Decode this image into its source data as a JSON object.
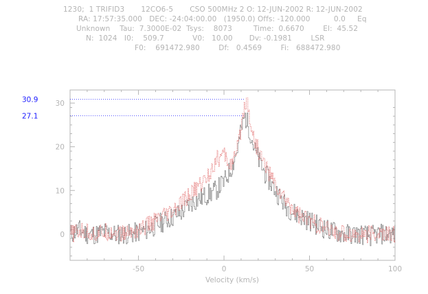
{
  "header": {
    "line1": "1230;  1 TRIFID3       12CO6-5       CSO 500MHz 2 O: 12-JUN-2002 R: 12-JUN-2002",
    "line2": "RA: 17:57:35.000   DEC: -24:04:00.00   (1950.0) Offs: -120.000          0.0     Eq",
    "line3": "Unknown    Tau:  7.3000E-02  Tsys:    8073         Time:  0.6670        El:  45.52",
    "line4": "N:  1024   I0:    509.7            V0:   10.00       Dv: -0.1981        LSR",
    "line5": "F0:    691472.980        Df:   0.4569        Fi:   688472.980"
  },
  "colors": {
    "axis": "#b4b4b4",
    "series_gray": "#808080",
    "series_red": "#e06060",
    "marker": "#1a1aff"
  },
  "chart_data": {
    "type": "line",
    "title": "",
    "xlabel": "Velocity (km/s)",
    "ylabel": "",
    "xlim": [
      -90,
      100
    ],
    "ylim": [
      -6,
      33
    ],
    "x_ticks": [
      -50,
      0,
      50,
      100
    ],
    "x_tick_labels": [
      "-50",
      "0",
      "50",
      "100"
    ],
    "y_ticks": [
      0,
      10,
      20,
      30
    ],
    "y_tick_labels": [
      "0",
      "10",
      "20",
      "30"
    ],
    "markers": [
      {
        "label": "30.9",
        "value": 30.9,
        "x_end": 12
      },
      {
        "label": "27.1",
        "value": 27.1,
        "x_end": 12
      }
    ],
    "series": [
      {
        "color": "#808080",
        "x": [
          -90,
          -85,
          -80,
          -75,
          -70,
          -65,
          -60,
          -55,
          -50,
          -45,
          -40,
          -35,
          -30,
          -25,
          -20,
          -15,
          -10,
          -5,
          0,
          5,
          8,
          10,
          12,
          14,
          16,
          18,
          20,
          25,
          30,
          35,
          40,
          45,
          50,
          55,
          60,
          65,
          70,
          75,
          80,
          85,
          90,
          95,
          100
        ],
        "y": [
          0,
          1,
          0,
          0,
          0.5,
          0,
          0,
          0,
          0.5,
          1,
          2,
          3,
          4,
          5,
          7,
          8,
          9,
          10,
          12,
          16,
          20,
          24,
          27,
          25,
          22,
          19,
          17,
          13,
          10,
          7,
          5,
          4,
          3,
          2,
          1,
          0.5,
          0,
          0,
          0,
          -0.5,
          0,
          0,
          0
        ]
      },
      {
        "color": "#e06060",
        "x": [
          -90,
          -85,
          -80,
          -75,
          -70,
          -65,
          -60,
          -55,
          -50,
          -45,
          -40,
          -35,
          -30,
          -25,
          -20,
          -15,
          -10,
          -5,
          0,
          3,
          6,
          8,
          10,
          12,
          13,
          14,
          16,
          18,
          20,
          25,
          30,
          35,
          40,
          45,
          50,
          55,
          60,
          65,
          70,
          75,
          80,
          85,
          90,
          95,
          100
        ],
        "y": [
          0,
          0.5,
          0.5,
          0,
          0.5,
          0.5,
          0,
          0.5,
          1,
          2,
          3,
          4,
          5,
          7,
          9,
          11,
          13,
          17,
          18,
          16,
          17,
          20,
          25,
          30,
          30.9,
          29,
          24,
          21,
          19,
          15,
          11,
          8,
          6,
          4,
          3,
          2,
          1,
          0.5,
          0,
          0,
          0,
          0,
          0,
          0,
          0
        ]
      }
    ]
  }
}
